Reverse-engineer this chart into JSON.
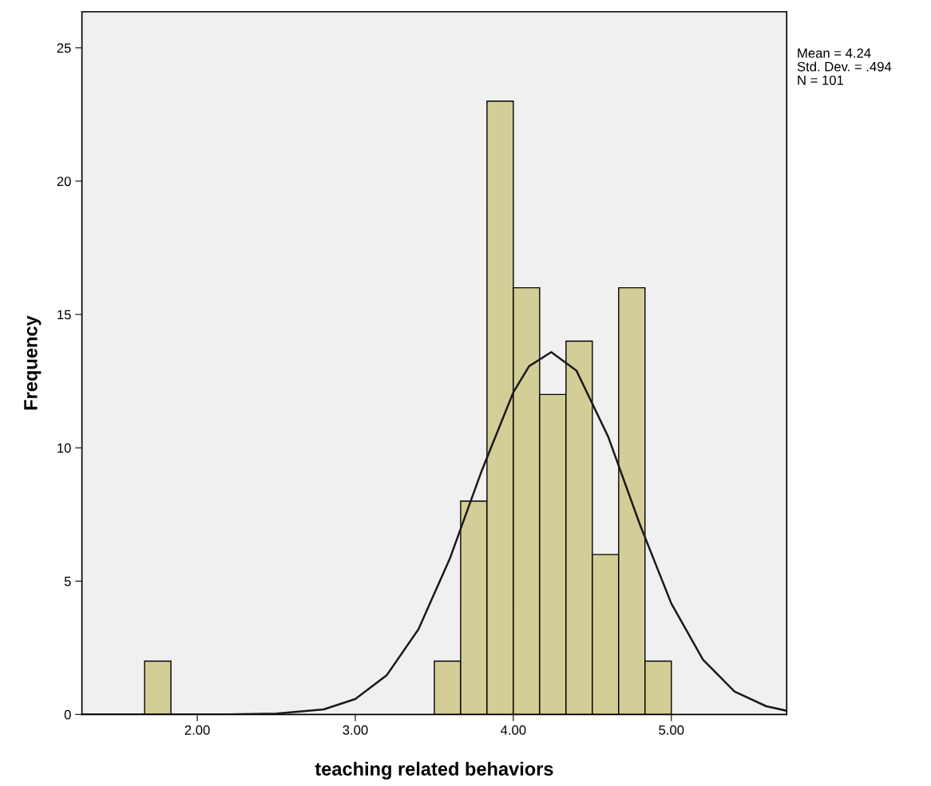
{
  "chart_data": {
    "type": "histogram",
    "xlabel": "teaching related behaviors",
    "ylabel": "Frequency",
    "bins": [
      1.6667,
      1.8333,
      2.0,
      2.1667,
      2.3333,
      2.5,
      2.6667,
      2.8333,
      3.0,
      3.1667,
      3.3333,
      3.5,
      3.6667,
      3.8333,
      4.0,
      4.1667,
      4.3333,
      4.5,
      4.6667,
      4.8333,
      5.0
    ],
    "values": [
      2,
      0,
      0,
      0,
      0,
      0,
      0,
      0,
      0,
      0,
      0,
      2,
      8,
      23,
      16,
      12,
      14,
      6,
      16,
      2
    ],
    "color": "#d3ce97",
    "series": [
      {
        "type": "line",
        "color": "#1a1a1a",
        "x": [
          1.27,
          2.0,
          2.2,
          2.5,
          2.8,
          3.0,
          3.2,
          3.4,
          3.6,
          3.8,
          4.0,
          4.1,
          4.24,
          4.4,
          4.6,
          4.8,
          5.0,
          5.2,
          5.4,
          5.6,
          5.73
        ],
        "values": [
          0,
          0,
          0,
          0.03,
          0.19,
          0.58,
          1.48,
          3.2,
          5.87,
          9.14,
          12.08,
          13.06,
          13.59,
          12.89,
          10.42,
          7.14,
          4.16,
          2.06,
          0.86,
          0.31,
          0.14
        ]
      }
    ],
    "xlim": [
      1.27,
      5.73
    ],
    "ylim": [
      0,
      26.35
    ],
    "xticks": [
      {
        "value": 2,
        "label": "2.00"
      },
      {
        "value": 3,
        "label": "3.00"
      },
      {
        "value": 4,
        "label": "4.00"
      },
      {
        "value": 5,
        "label": "5.00"
      }
    ],
    "yticks": [
      0,
      5,
      10,
      15,
      20,
      25
    ],
    "annotations": [
      "Mean = 4.24",
      "Std. Dev. = .494",
      "N = 101"
    ],
    "grid": false,
    "legend": false
  }
}
